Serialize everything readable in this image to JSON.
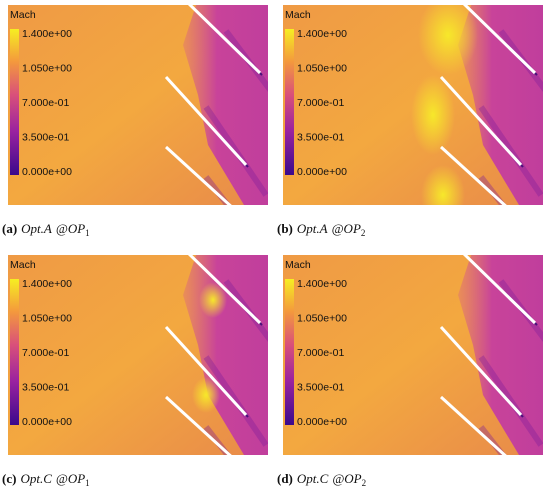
{
  "colorbar": {
    "title": "Mach",
    "ticks": [
      "1.400e+00",
      "1.050e+00",
      "7.000e-01",
      "3.500e-01",
      "0.000e+00"
    ]
  },
  "panels": [
    {
      "letter": "(a)",
      "name": "Opt.A",
      "op": "@OP",
      "sub": "1"
    },
    {
      "letter": "(b)",
      "name": "Opt.A",
      "op": "@OP",
      "sub": "2"
    },
    {
      "letter": "(c)",
      "name": "Opt.C",
      "op": "@OP",
      "sub": "1"
    },
    {
      "letter": "(d)",
      "name": "Opt.C",
      "op": "@OP",
      "sub": "2"
    }
  ]
}
